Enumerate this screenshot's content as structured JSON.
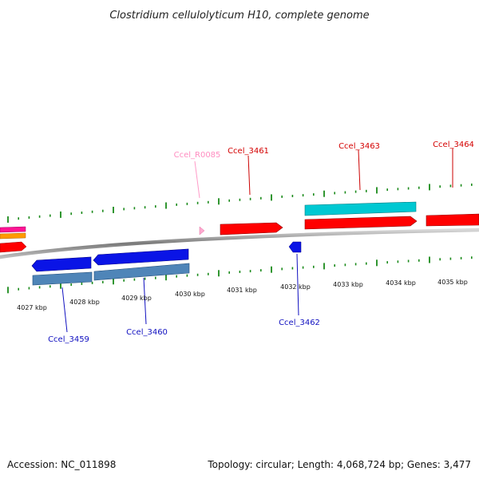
{
  "title": "Clostridium cellulolyticum H10, complete genome",
  "footer": {
    "accession": "Accession: NC_011898",
    "summary": "Topology: circular; Length: 4,068,724 bp; Genes: 3,477"
  },
  "colors": {
    "forward_gene": "#ff0000",
    "forward_cds": "#00c8d2",
    "reverse_gene": "#0a14e6",
    "reverse_cds": "#4f85b8",
    "rna": "#ffaad0",
    "label_forward": "#d40000",
    "label_reverse": "#1010c0",
    "label_rna": "#ff8cc0",
    "ticks": "#1a8a1a",
    "backbone": "#8a8a8a"
  },
  "scale": {
    "unit": "kbp",
    "labels": [
      "4027 kbp",
      "4028 kbp",
      "4029 kbp",
      "4030 kbp",
      "4031 kbp",
      "4032 kbp",
      "4033 kbp",
      "4034 kbp",
      "4035 kbp"
    ]
  },
  "genes": [
    {
      "name": "Ccel_R0085",
      "strand": "+",
      "type": "rna"
    },
    {
      "name": "Ccel_3461",
      "strand": "+",
      "type": "gene"
    },
    {
      "name": "Ccel_3463",
      "strand": "+",
      "type": "gene"
    },
    {
      "name": "Ccel_3464",
      "strand": "+",
      "type": "gene"
    },
    {
      "name": "Ccel_3459",
      "strand": "-",
      "type": "gene"
    },
    {
      "name": "Ccel_3460",
      "strand": "-",
      "type": "gene"
    },
    {
      "name": "Ccel_3462",
      "strand": "-",
      "type": "gene"
    }
  ]
}
